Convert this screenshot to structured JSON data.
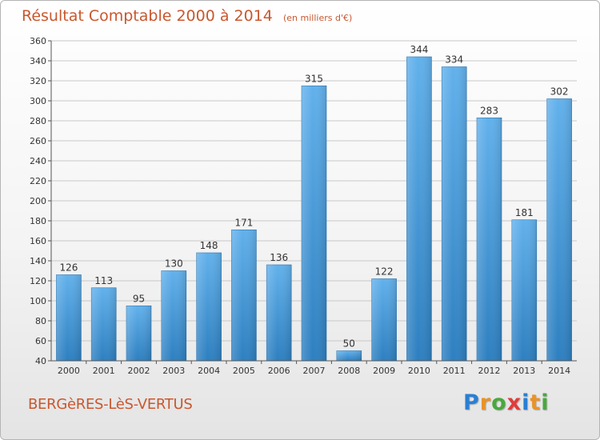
{
  "header": {
    "title": "Résultat Comptable 2000 à 2014",
    "subtitle": "(en milliers d'€)"
  },
  "footer": {
    "commune": "BERGèRES-LèS-VERTUS"
  },
  "logo": {
    "letters": [
      "P",
      "r",
      "o",
      "x",
      "i",
      "t",
      "i"
    ],
    "colors": [
      "#2a7fd4",
      "#e8932a",
      "#4aa83e",
      "#e23b3b",
      "#2a7fd4",
      "#e8932a",
      "#4aa83e"
    ]
  },
  "colors": {
    "bar_light": "#62b1ec",
    "bar_dark": "#2d7fc0",
    "grid": "#c8c8c8",
    "text": "#333333",
    "title": "#c9572e"
  },
  "chart_data": {
    "type": "bar",
    "title": "Résultat Comptable 2000 à 2014",
    "subtitle": "(en milliers d'€)",
    "categories": [
      "2000",
      "2001",
      "2002",
      "2003",
      "2004",
      "2005",
      "2006",
      "2007",
      "2008",
      "2009",
      "2010",
      "2011",
      "2012",
      "2013",
      "2014"
    ],
    "values": [
      126,
      113,
      95,
      130,
      148,
      171,
      136,
      315,
      50,
      122,
      344,
      334,
      283,
      181,
      302
    ],
    "ylim": [
      40,
      360
    ],
    "yticks": [
      40,
      60,
      80,
      100,
      120,
      140,
      160,
      180,
      200,
      220,
      240,
      260,
      280,
      300,
      320,
      340,
      360
    ],
    "grid": true,
    "legend": "none"
  }
}
